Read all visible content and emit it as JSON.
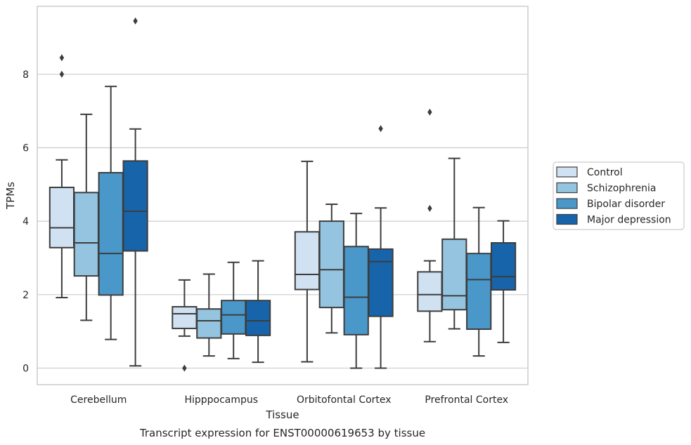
{
  "chart_data": {
    "type": "box",
    "title": "",
    "caption": "Transcript expression for ENST00000619653 by tissue",
    "xlabel": "Tissue",
    "ylabel": "TPMs",
    "ylim": [
      -0.45,
      9.85
    ],
    "yticks": [
      0,
      2,
      4,
      6,
      8
    ],
    "grid": "horizontal",
    "legend_position": "right",
    "categories": [
      "Cerebellum",
      "Hipppocampus",
      "Orbitofontal Cortex",
      "Prefrontal Cortex"
    ],
    "series": [
      {
        "name": "Control",
        "color": "#d0e1f2",
        "boxes": [
          {
            "whislo": 1.92,
            "q1": 3.28,
            "med": 3.82,
            "q3": 4.92,
            "whishi": 5.67,
            "fliers": [
              8.0,
              8.45
            ]
          },
          {
            "whislo": 0.87,
            "q1": 1.08,
            "med": 1.48,
            "q3": 1.67,
            "whishi": 2.4,
            "fliers": [
              0.0
            ]
          },
          {
            "whislo": 0.17,
            "q1": 2.14,
            "med": 2.55,
            "q3": 3.71,
            "whishi": 5.63,
            "fliers": []
          },
          {
            "whislo": 0.72,
            "q1": 1.55,
            "med": 2.0,
            "q3": 2.62,
            "whishi": 2.92,
            "fliers": [
              4.35,
              6.97
            ]
          }
        ]
      },
      {
        "name": "Schizophrenia",
        "color": "#94c4df",
        "boxes": [
          {
            "whislo": 1.3,
            "q1": 2.51,
            "med": 3.41,
            "q3": 4.78,
            "whishi": 6.91,
            "fliers": []
          },
          {
            "whislo": 0.33,
            "q1": 0.82,
            "med": 1.29,
            "q3": 1.61,
            "whishi": 2.56,
            "fliers": []
          },
          {
            "whislo": 0.96,
            "q1": 1.65,
            "med": 2.68,
            "q3": 4.0,
            "whishi": 4.46,
            "fliers": []
          },
          {
            "whislo": 1.07,
            "q1": 1.59,
            "med": 1.97,
            "q3": 3.51,
            "whishi": 5.71,
            "fliers": []
          }
        ]
      },
      {
        "name": "Bipolar disorder",
        "color": "#4a98c9",
        "boxes": [
          {
            "whislo": 0.78,
            "q1": 1.99,
            "med": 3.12,
            "q3": 5.32,
            "whishi": 7.67,
            "fliers": []
          },
          {
            "whislo": 0.26,
            "q1": 0.93,
            "med": 1.45,
            "q3": 1.84,
            "whishi": 2.88,
            "fliers": []
          },
          {
            "whislo": 0.0,
            "q1": 0.91,
            "med": 1.93,
            "q3": 3.31,
            "whishi": 4.21,
            "fliers": []
          },
          {
            "whislo": 0.33,
            "q1": 1.06,
            "med": 2.41,
            "q3": 3.12,
            "whishi": 4.37,
            "fliers": []
          }
        ]
      },
      {
        "name": "Major depression",
        "color": "#1764ab",
        "boxes": [
          {
            "whislo": 0.06,
            "q1": 3.19,
            "med": 4.27,
            "q3": 5.64,
            "whishi": 6.51,
            "fliers": [
              9.45
            ]
          },
          {
            "whislo": 0.16,
            "q1": 0.89,
            "med": 1.29,
            "q3": 1.84,
            "whishi": 2.92,
            "fliers": []
          },
          {
            "whislo": 0.0,
            "q1": 1.41,
            "med": 2.9,
            "q3": 3.24,
            "whishi": 4.36,
            "fliers": [
              6.52
            ]
          },
          {
            "whislo": 0.7,
            "q1": 2.13,
            "med": 2.49,
            "q3": 3.41,
            "whishi": 4.01,
            "fliers": []
          }
        ]
      }
    ]
  }
}
